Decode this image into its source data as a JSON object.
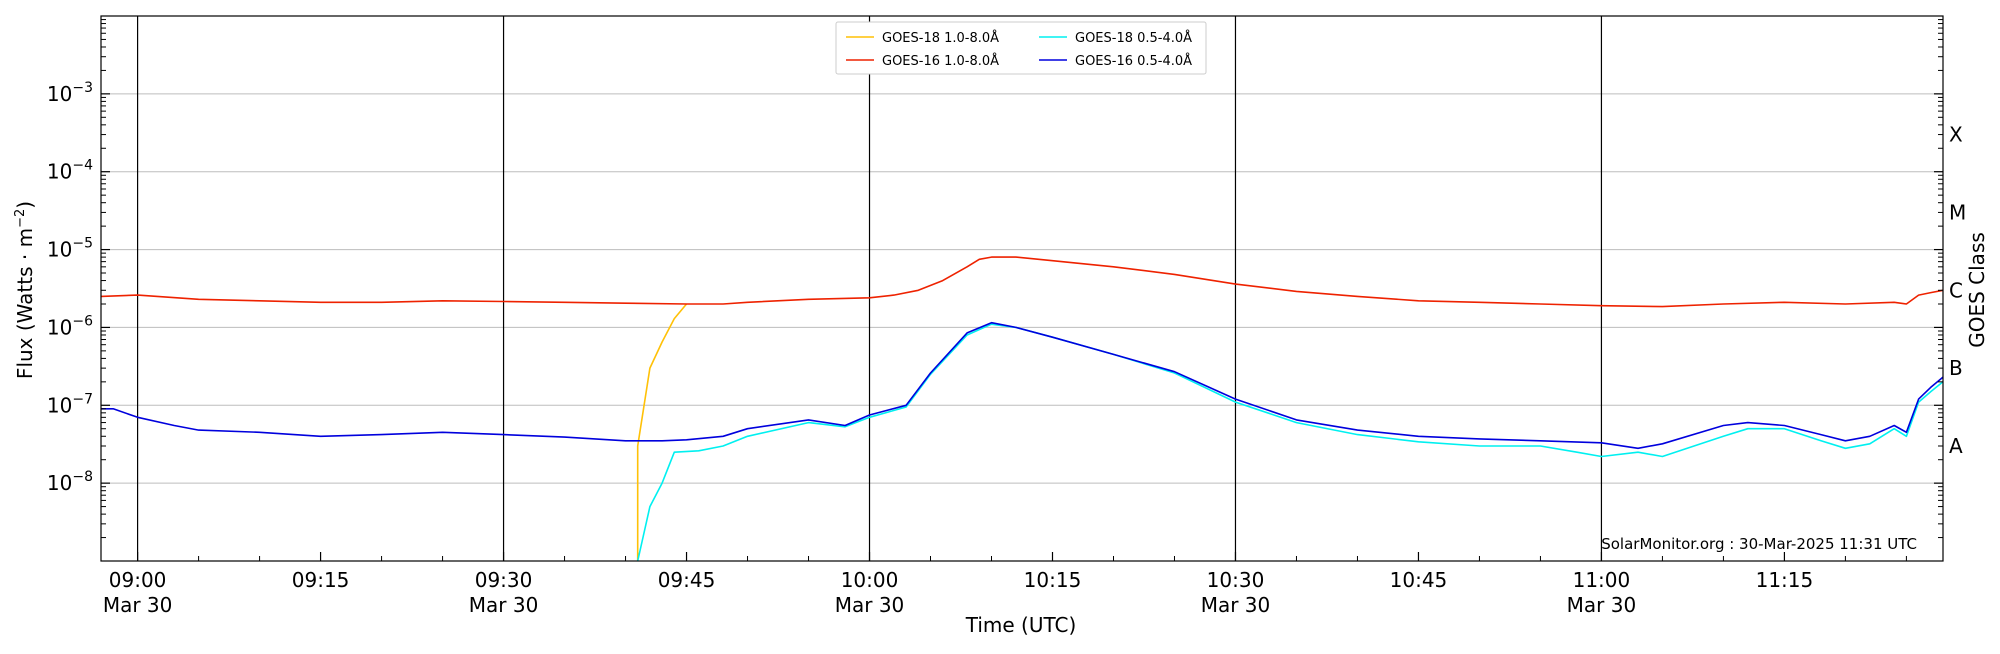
{
  "chart_data": {
    "type": "line",
    "xlabel": "Time (UTC)",
    "ylabel": "Flux (Watts · m",
    "ylabel_sup": "−2",
    "ylabel_close": ")",
    "y2label": "GOES Class",
    "y_scale": "log",
    "ylim": [
      1e-09,
      0.01
    ],
    "xlim": [
      "08:57",
      "11:28"
    ],
    "grid": "horizontal",
    "legend_position": "top-center",
    "x_ticks": [
      {
        "time": "09:00",
        "line1": "09:00",
        "line2": "Mar 30",
        "major": true
      },
      {
        "time": "09:15",
        "line1": "09:15",
        "line2": "",
        "major": false
      },
      {
        "time": "09:30",
        "line1": "09:30",
        "line2": "Mar 30",
        "major": true
      },
      {
        "time": "09:45",
        "line1": "09:45",
        "line2": "",
        "major": false
      },
      {
        "time": "10:00",
        "line1": "10:00",
        "line2": "Mar 30",
        "major": true
      },
      {
        "time": "10:15",
        "line1": "10:15",
        "line2": "",
        "major": false
      },
      {
        "time": "10:30",
        "line1": "10:30",
        "line2": "Mar 30",
        "major": true
      },
      {
        "time": "10:45",
        "line1": "10:45",
        "line2": "",
        "major": false
      },
      {
        "time": "11:00",
        "line1": "11:00",
        "line2": "Mar 30",
        "major": true
      },
      {
        "time": "11:15",
        "line1": "11:15",
        "line2": "",
        "major": false
      }
    ],
    "y_ticks": [
      {
        "value": 1e-08,
        "base": "10",
        "exp": "−8"
      },
      {
        "value": 1e-07,
        "base": "10",
        "exp": "−7"
      },
      {
        "value": 1e-06,
        "base": "10",
        "exp": "−6"
      },
      {
        "value": 1e-05,
        "base": "10",
        "exp": "−5"
      },
      {
        "value": 0.0001,
        "base": "10",
        "exp": "−4"
      },
      {
        "value": 0.001,
        "base": "10",
        "exp": "−3"
      }
    ],
    "class_labels": [
      {
        "value": 0.0003,
        "label": "X"
      },
      {
        "value": 3e-05,
        "label": "M"
      },
      {
        "value": 3e-06,
        "label": "C"
      },
      {
        "value": 3e-07,
        "label": "B"
      },
      {
        "value": 3e-08,
        "label": "A"
      }
    ],
    "series": [
      {
        "name": "GOES-18 1.0-8.0Å",
        "color": "#ffc107",
        "points": [
          [
            "09:41",
            1e-09
          ],
          [
            "09:41",
            3e-08
          ],
          [
            "09:42",
            3e-07
          ],
          [
            "09:43",
            6.5e-07
          ],
          [
            "09:44",
            1.3e-06
          ],
          [
            "09:45",
            2e-06
          ]
        ]
      },
      {
        "name": "GOES-16 1.0-8.0Å",
        "color": "#ee2200",
        "points": [
          [
            "08:57",
            2.5e-06
          ],
          [
            "09:00",
            2.6e-06
          ],
          [
            "09:05",
            2.3e-06
          ],
          [
            "09:10",
            2.2e-06
          ],
          [
            "09:15",
            2.1e-06
          ],
          [
            "09:20",
            2.1e-06
          ],
          [
            "09:25",
            2.2e-06
          ],
          [
            "09:30",
            2.15e-06
          ],
          [
            "09:35",
            2.1e-06
          ],
          [
            "09:40",
            2.05e-06
          ],
          [
            "09:45",
            2e-06
          ],
          [
            "09:48",
            2e-06
          ],
          [
            "09:50",
            2.1e-06
          ],
          [
            "09:55",
            2.3e-06
          ],
          [
            "10:00",
            2.4e-06
          ],
          [
            "10:02",
            2.6e-06
          ],
          [
            "10:04",
            3e-06
          ],
          [
            "10:06",
            4e-06
          ],
          [
            "10:08",
            6e-06
          ],
          [
            "10:09",
            7.5e-06
          ],
          [
            "10:10",
            8e-06
          ],
          [
            "10:12",
            8e-06
          ],
          [
            "10:15",
            7.2e-06
          ],
          [
            "10:20",
            6e-06
          ],
          [
            "10:25",
            4.8e-06
          ],
          [
            "10:30",
            3.6e-06
          ],
          [
            "10:35",
            2.9e-06
          ],
          [
            "10:40",
            2.5e-06
          ],
          [
            "10:45",
            2.2e-06
          ],
          [
            "10:50",
            2.1e-06
          ],
          [
            "10:55",
            2e-06
          ],
          [
            "11:00",
            1.9e-06
          ],
          [
            "11:05",
            1.85e-06
          ],
          [
            "11:10",
            2e-06
          ],
          [
            "11:15",
            2.1e-06
          ],
          [
            "11:20",
            2e-06
          ],
          [
            "11:24",
            2.1e-06
          ],
          [
            "11:25",
            2e-06
          ],
          [
            "11:26",
            2.6e-06
          ],
          [
            "11:27",
            2.8e-06
          ],
          [
            "11:28",
            3e-06
          ]
        ]
      },
      {
        "name": "GOES-18 0.5-4.0Å",
        "color": "#00f0f0",
        "points": [
          [
            "09:41",
            1e-09
          ],
          [
            "09:42",
            5e-09
          ],
          [
            "09:43",
            1e-08
          ],
          [
            "09:44",
            2.5e-08
          ],
          [
            "09:46",
            2.6e-08
          ],
          [
            "09:48",
            3e-08
          ],
          [
            "09:50",
            4e-08
          ],
          [
            "09:55",
            6e-08
          ],
          [
            "09:58",
            5.3e-08
          ],
          [
            "10:00",
            7e-08
          ],
          [
            "10:03",
            9.5e-08
          ],
          [
            "10:05",
            2.5e-07
          ],
          [
            "10:08",
            8e-07
          ],
          [
            "10:10",
            1.1e-06
          ],
          [
            "10:12",
            1e-06
          ],
          [
            "10:15",
            7.5e-07
          ],
          [
            "10:20",
            4.5e-07
          ],
          [
            "10:25",
            2.6e-07
          ],
          [
            "10:30",
            1.1e-07
          ],
          [
            "10:35",
            6e-08
          ],
          [
            "10:40",
            4.2e-08
          ],
          [
            "10:45",
            3.4e-08
          ],
          [
            "10:50",
            3e-08
          ],
          [
            "10:55",
            3e-08
          ],
          [
            "10:58",
            2.5e-08
          ],
          [
            "11:00",
            2.2e-08
          ],
          [
            "11:03",
            2.5e-08
          ],
          [
            "11:05",
            2.2e-08
          ],
          [
            "11:10",
            4e-08
          ],
          [
            "11:12",
            5e-08
          ],
          [
            "11:15",
            5e-08
          ],
          [
            "11:18",
            3.5e-08
          ],
          [
            "11:20",
            2.8e-08
          ],
          [
            "11:22",
            3.2e-08
          ],
          [
            "11:24",
            5e-08
          ],
          [
            "11:25",
            4e-08
          ],
          [
            "11:26",
            1.1e-07
          ],
          [
            "11:27",
            1.5e-07
          ],
          [
            "11:28",
            2e-07
          ]
        ]
      },
      {
        "name": "GOES-16 0.5-4.0Å",
        "color": "#0000dd",
        "points": [
          [
            "08:57",
            9e-08
          ],
          [
            "08:58",
            9e-08
          ],
          [
            "09:00",
            7e-08
          ],
          [
            "09:03",
            5.5e-08
          ],
          [
            "09:05",
            4.8e-08
          ],
          [
            "09:10",
            4.5e-08
          ],
          [
            "09:15",
            4e-08
          ],
          [
            "09:20",
            4.2e-08
          ],
          [
            "09:25",
            4.5e-08
          ],
          [
            "09:30",
            4.2e-08
          ],
          [
            "09:35",
            3.9e-08
          ],
          [
            "09:40",
            3.5e-08
          ],
          [
            "09:43",
            3.5e-08
          ],
          [
            "09:45",
            3.6e-08
          ],
          [
            "09:48",
            4e-08
          ],
          [
            "09:50",
            5e-08
          ],
          [
            "09:55",
            6.5e-08
          ],
          [
            "09:58",
            5.5e-08
          ],
          [
            "10:00",
            7.5e-08
          ],
          [
            "10:03",
            1e-07
          ],
          [
            "10:05",
            2.6e-07
          ],
          [
            "10:08",
            8.5e-07
          ],
          [
            "10:10",
            1.15e-06
          ],
          [
            "10:12",
            1e-06
          ],
          [
            "10:15",
            7.5e-07
          ],
          [
            "10:20",
            4.5e-07
          ],
          [
            "10:25",
            2.7e-07
          ],
          [
            "10:30",
            1.2e-07
          ],
          [
            "10:35",
            6.5e-08
          ],
          [
            "10:40",
            4.8e-08
          ],
          [
            "10:45",
            4e-08
          ],
          [
            "10:50",
            3.7e-08
          ],
          [
            "10:55",
            3.5e-08
          ],
          [
            "11:00",
            3.3e-08
          ],
          [
            "11:03",
            2.8e-08
          ],
          [
            "11:05",
            3.2e-08
          ],
          [
            "11:10",
            5.5e-08
          ],
          [
            "11:12",
            6e-08
          ],
          [
            "11:15",
            5.5e-08
          ],
          [
            "11:18",
            4.2e-08
          ],
          [
            "11:20",
            3.5e-08
          ],
          [
            "11:22",
            4e-08
          ],
          [
            "11:24",
            5.5e-08
          ],
          [
            "11:25",
            4.5e-08
          ],
          [
            "11:26",
            1.2e-07
          ],
          [
            "11:27",
            1.7e-07
          ],
          [
            "11:28",
            2.3e-07
          ]
        ]
      }
    ]
  },
  "credit": "SolarMonitor.org : 30-Mar-2025 11:31 UTC",
  "legend_order": [
    0,
    2,
    1,
    3
  ]
}
